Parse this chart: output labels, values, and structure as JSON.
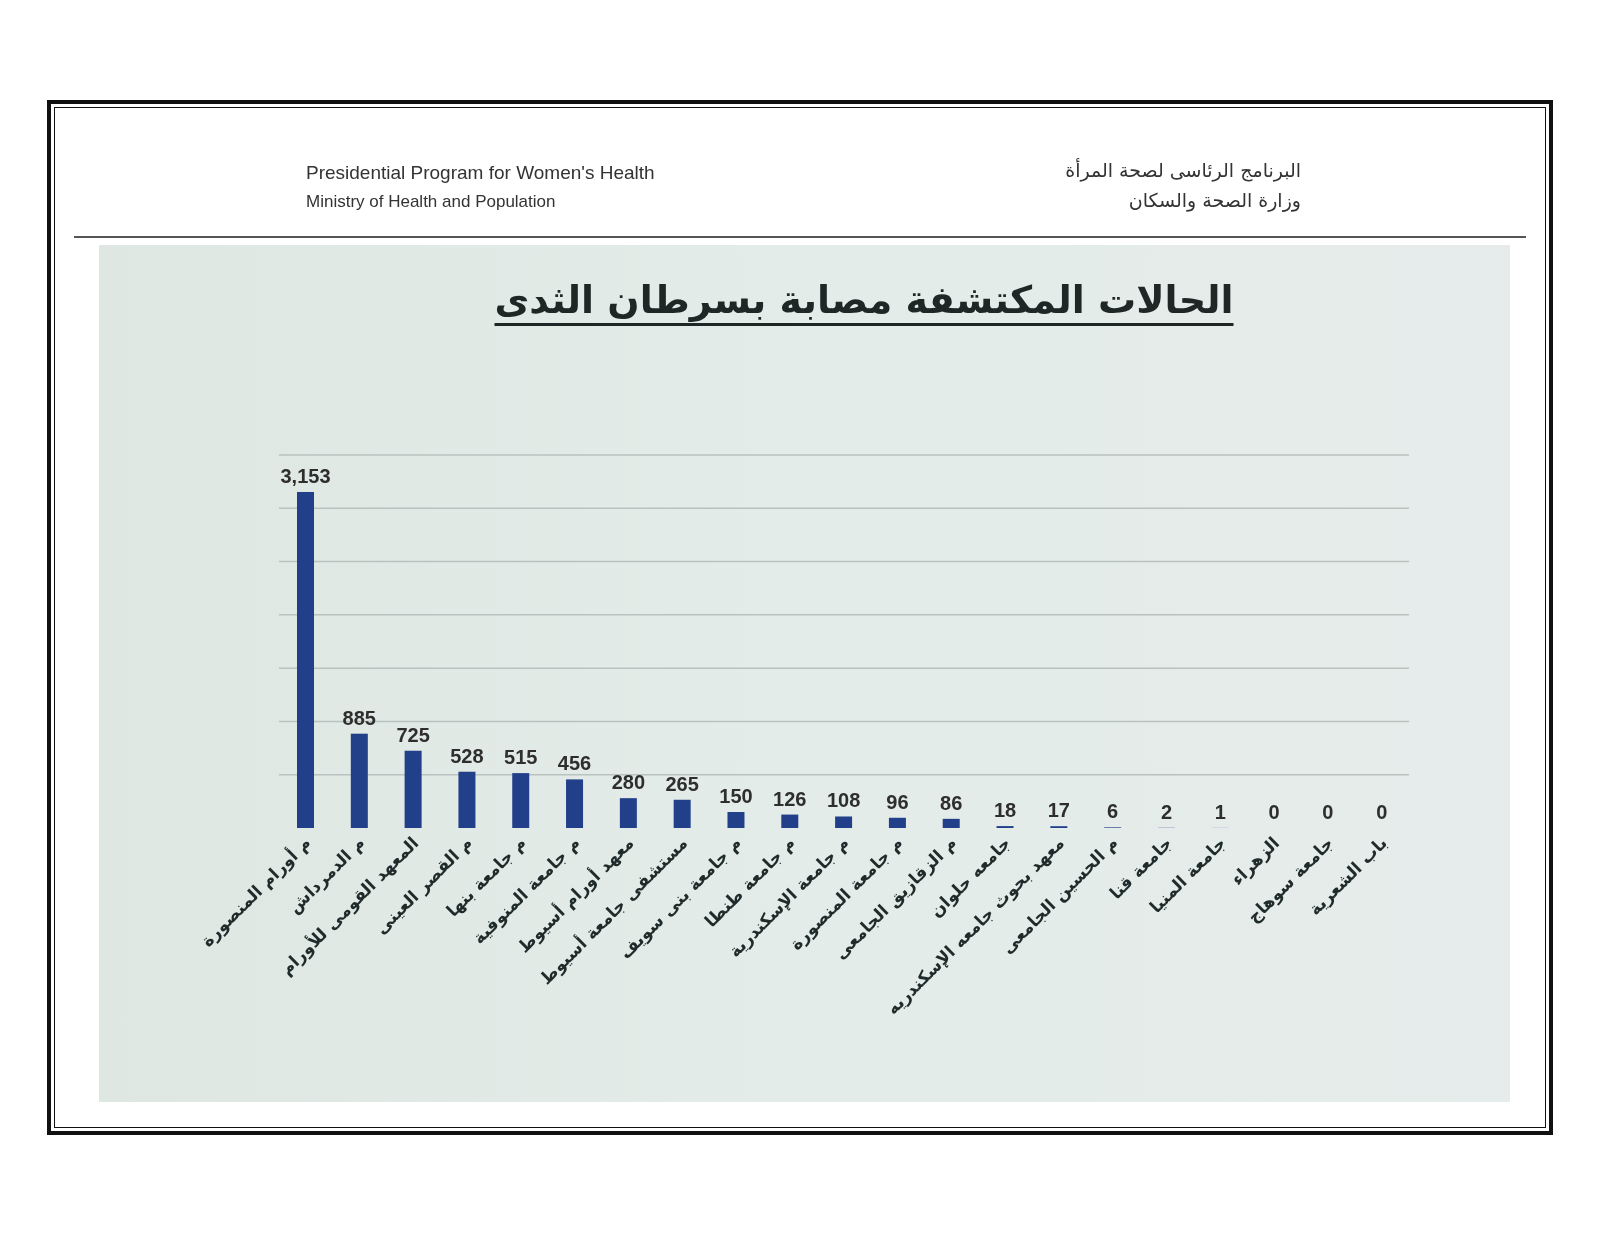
{
  "chart_data": {
    "type": "bar",
    "title": "الحالات المكتشفة مصابة بسرطان الثدى",
    "annotations": [
      "Presidential Program for Women's Health",
      "Ministry of Health and Population",
      "البرنامج الرئاسى لصحة المرأة",
      "وزارة الصحة والسكان"
    ],
    "categories": [
      "م أورام المنصورة",
      "م الدمرداش",
      "المعهد القومى للأورام",
      "م القصر العينى",
      "م جامعة بنها",
      "م جامعة المنوفية",
      "معهد أورام أسيوط",
      "مستشفى جامعة أسيوط",
      "م جامعة بنى سويف",
      "م جامعة طنطا",
      "م جامعة الإسكندرية",
      "م جامعة المنصورة",
      "م الزقازيق الجامعى",
      "جامعه حلوان",
      "معهد بحوث جامعه الإسكندريه",
      "م الحسين الجامعى",
      "جامعة قنا",
      "جامعة المنيا",
      "الزهراء",
      "جامعة سوهاج",
      "باب الشعرية"
    ],
    "values": [
      3153,
      885,
      725,
      528,
      515,
      456,
      280,
      265,
      150,
      126,
      108,
      96,
      86,
      18,
      17,
      6,
      2,
      1,
      0,
      0,
      0
    ],
    "value_labels": [
      "3,153",
      "885",
      "725",
      "528",
      "515",
      "456",
      "280",
      "265",
      "150",
      "126",
      "108",
      "96",
      "86",
      "18",
      "17",
      "6",
      "2",
      "1",
      "0",
      "0",
      "0"
    ],
    "color": "#22408a",
    "ylim": [
      0,
      3500
    ],
    "yticks": [
      {
        "value": 500,
        "label": null
      },
      {
        "value": 1000,
        "label": null
      },
      {
        "value": 1500,
        "label": null
      },
      {
        "value": 2000,
        "label": null
      },
      {
        "value": 2500,
        "label": null
      },
      {
        "value": 3000,
        "label": null
      },
      {
        "value": 3500,
        "label": null
      }
    ],
    "grid": "y",
    "tick_labels": "x"
  }
}
